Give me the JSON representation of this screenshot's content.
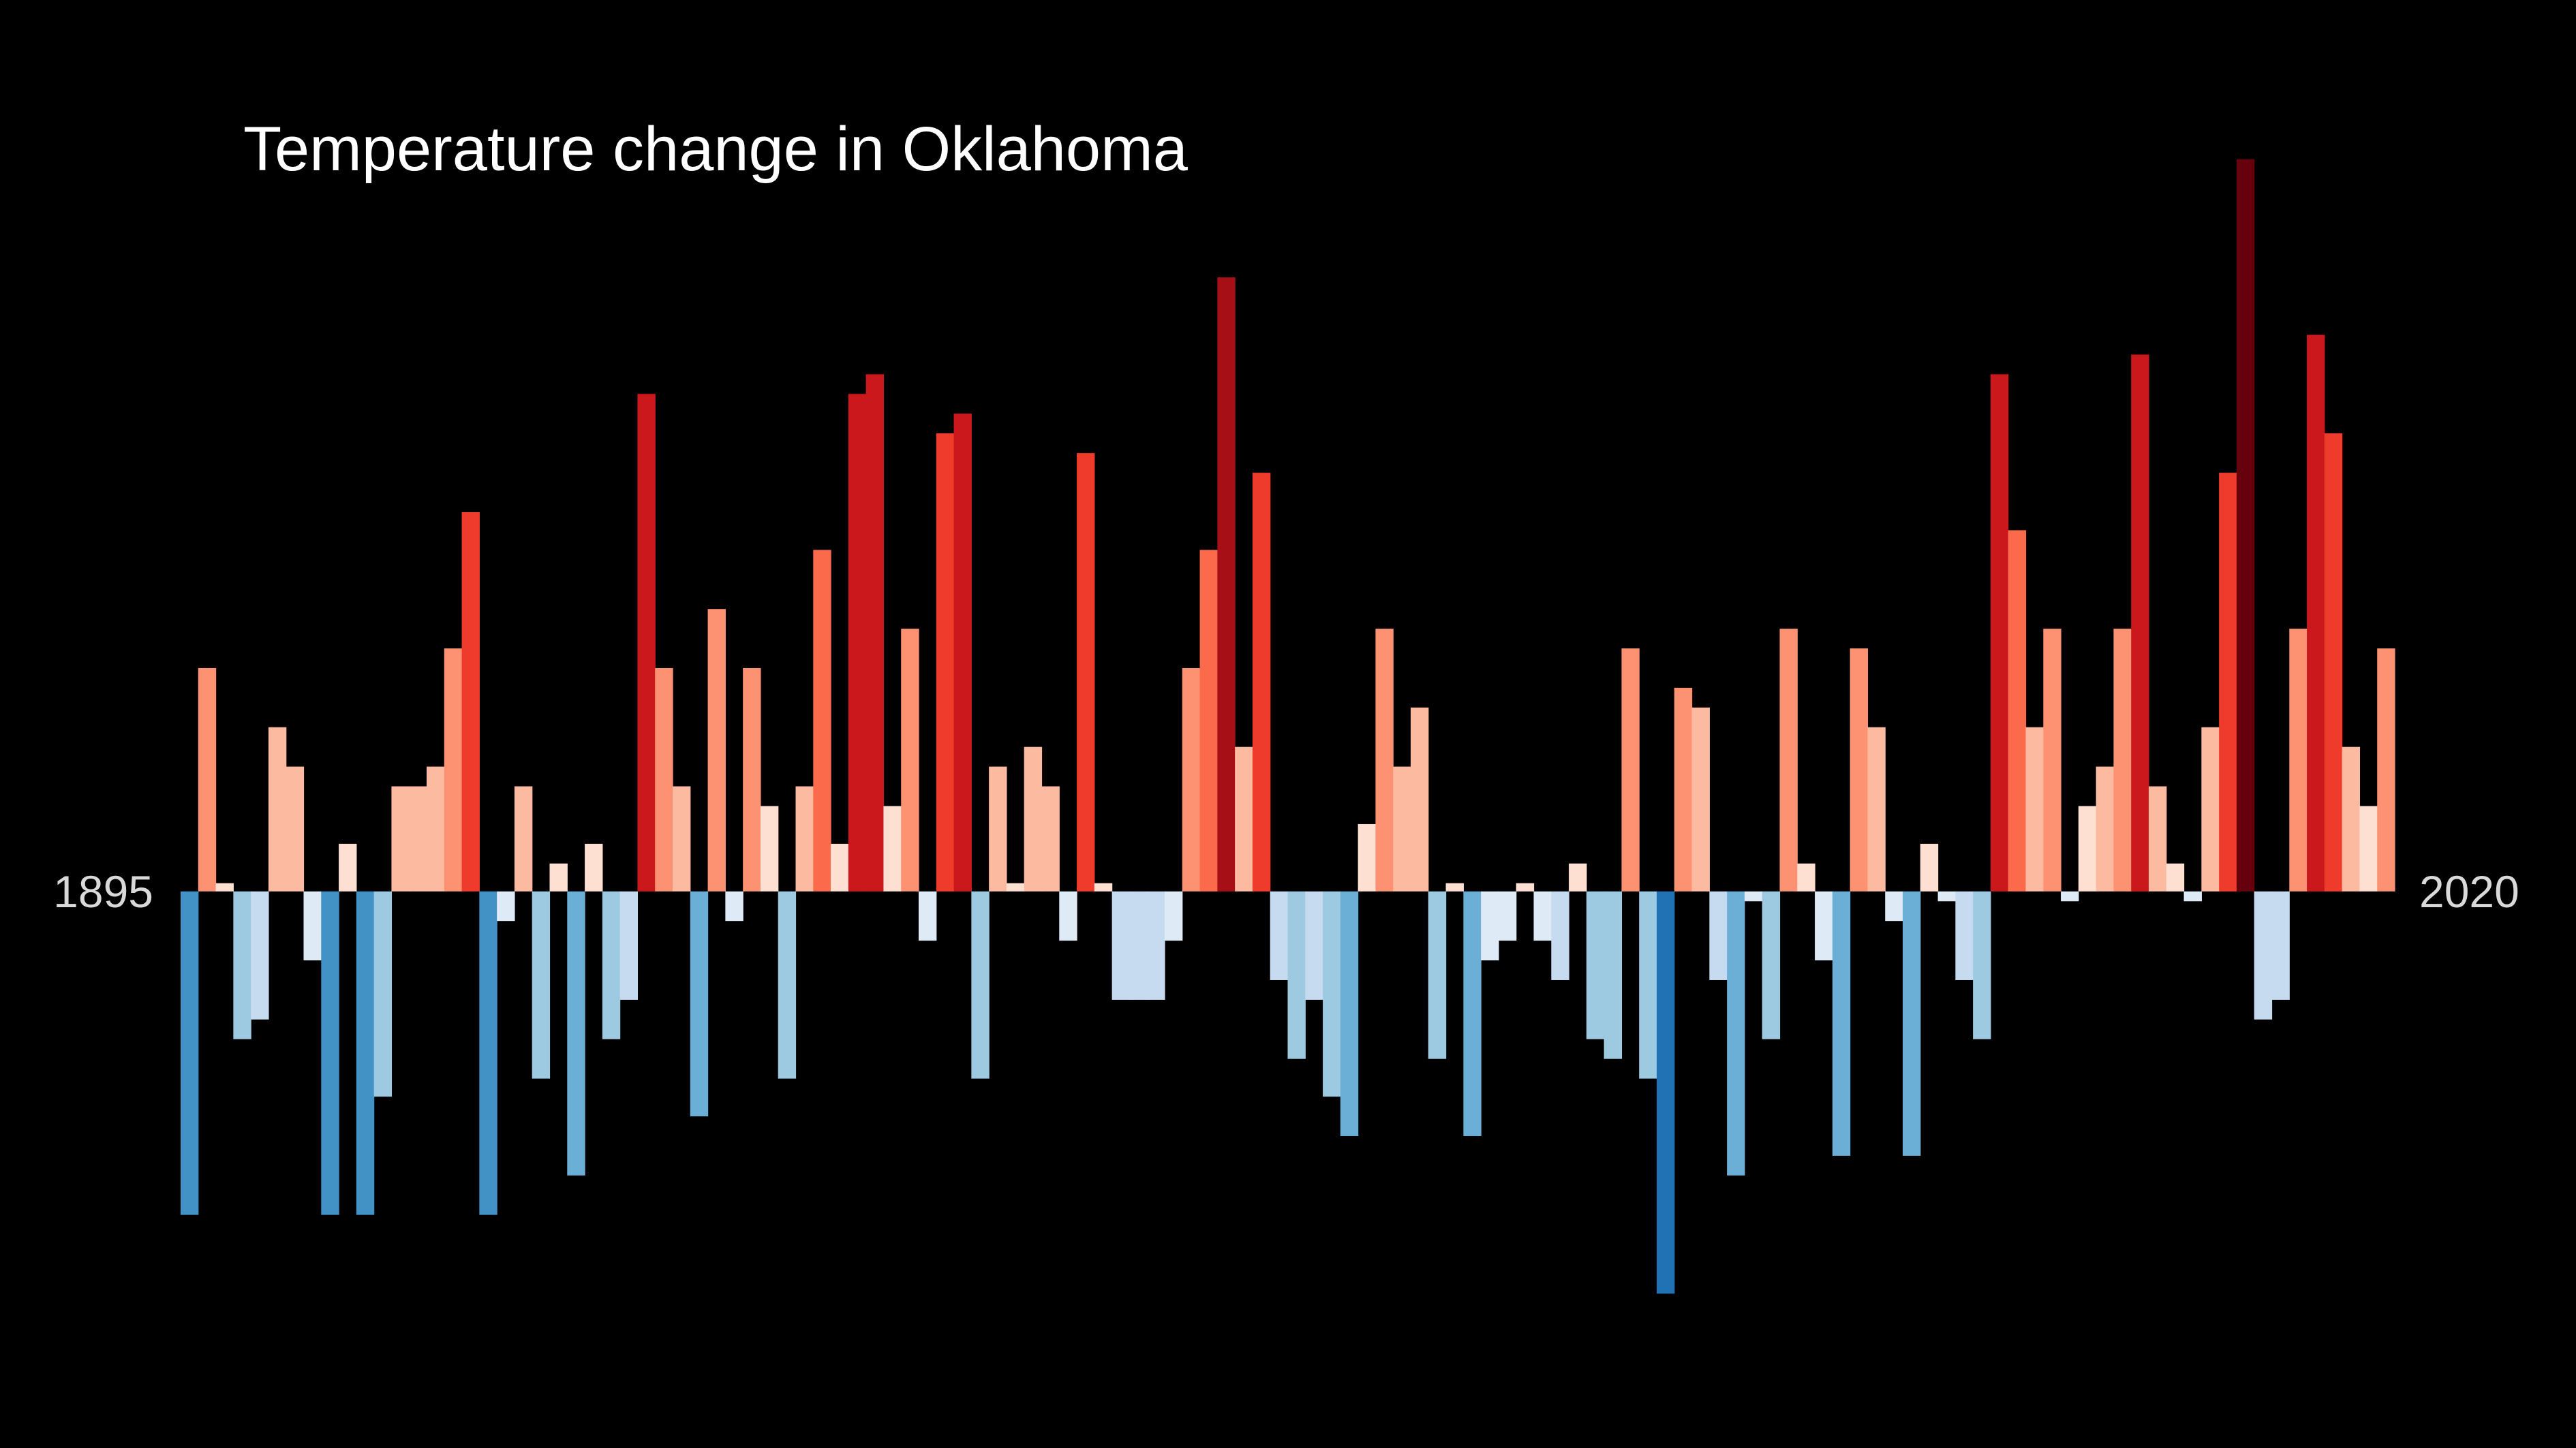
{
  "chart_data": {
    "type": "bar",
    "title": "Temperature change in Oklahoma",
    "categories": [
      "1895",
      null,
      null,
      null,
      null,
      null,
      null,
      null,
      null,
      null,
      null,
      null,
      null,
      null,
      null,
      null,
      null,
      null,
      null,
      null,
      null,
      null,
      null,
      null,
      null,
      null,
      null,
      null,
      null,
      null,
      null,
      null,
      null,
      null,
      null,
      null,
      null,
      null,
      null,
      null,
      null,
      null,
      null,
      null,
      null,
      null,
      null,
      null,
      null,
      null,
      null,
      null,
      null,
      null,
      null,
      null,
      null,
      null,
      null,
      null,
      null,
      null,
      null,
      null,
      null,
      null,
      null,
      null,
      null,
      null,
      null,
      null,
      null,
      null,
      null,
      null,
      null,
      null,
      null,
      null,
      null,
      null,
      null,
      null,
      null,
      null,
      null,
      null,
      null,
      null,
      null,
      null,
      null,
      null,
      null,
      null,
      null,
      null,
      null,
      null,
      null,
      null,
      null,
      null,
      null,
      null,
      null,
      null,
      null,
      null,
      null,
      null,
      null,
      null,
      null,
      null,
      null,
      null,
      null,
      null,
      null,
      null,
      null,
      null,
      null,
      "2020"
    ],
    "values": [
      -1.97,
      1.36,
      0.05,
      -0.9,
      -0.78,
      1.0,
      0.76,
      -0.42,
      -1.97,
      0.29,
      -1.97,
      -1.25,
      0.64,
      0.64,
      0.76,
      1.48,
      2.31,
      -1.97,
      -0.18,
      0.64,
      -1.14,
      0.17,
      -1.73,
      0.29,
      -0.9,
      -0.66,
      3.03,
      1.36,
      0.64,
      -1.37,
      1.72,
      -0.18,
      1.36,
      0.52,
      -1.14,
      0.64,
      2.08,
      0.29,
      3.03,
      3.15,
      0.52,
      1.6,
      -0.3,
      2.79,
      2.91,
      -1.14,
      0.76,
      0.05,
      0.88,
      0.64,
      -0.3,
      2.67,
      0.05,
      -0.66,
      -0.66,
      -0.66,
      -0.3,
      1.36,
      2.08,
      3.74,
      0.88,
      2.55,
      -0.54,
      -1.02,
      -0.66,
      -1.25,
      -1.49,
      0.41,
      1.6,
      0.76,
      1.12,
      -1.02,
      0.05,
      -1.49,
      -0.42,
      -0.3,
      0.05,
      -0.3,
      -0.54,
      0.17,
      -0.9,
      -1.02,
      1.48,
      -1.14,
      -2.45,
      1.24,
      1.12,
      -0.54,
      -1.73,
      -0.06,
      -0.9,
      1.6,
      0.17,
      -0.42,
      -1.61,
      1.48,
      1.0,
      -0.18,
      -1.61,
      0.29,
      -0.06,
      -0.54,
      -0.9,
      3.15,
      2.2,
      1.0,
      1.6,
      -0.06,
      0.52,
      0.76,
      1.6,
      3.27,
      0.64,
      0.17,
      -0.06,
      1.0,
      2.55,
      4.46,
      -0.78,
      -0.66,
      1.6,
      3.39,
      2.79,
      0.88,
      0.52,
      1.48
    ],
    "ylim": [
      -3,
      4.5
    ],
    "clim": [
      -2.6,
      4.6
    ],
    "colormap": {
      "negative": [
        "#deebf7",
        "#c6dbef",
        "#9ecae1",
        "#6baed6",
        "#4292c6",
        "#2171b5"
      ],
      "positive": [
        "#fee0d2",
        "#fcbba1",
        "#fc9272",
        "#fb6a4a",
        "#ef3b2c",
        "#cb181d",
        "#a50f15",
        "#67000d"
      ]
    },
    "background": "#000000",
    "grid": false
  }
}
